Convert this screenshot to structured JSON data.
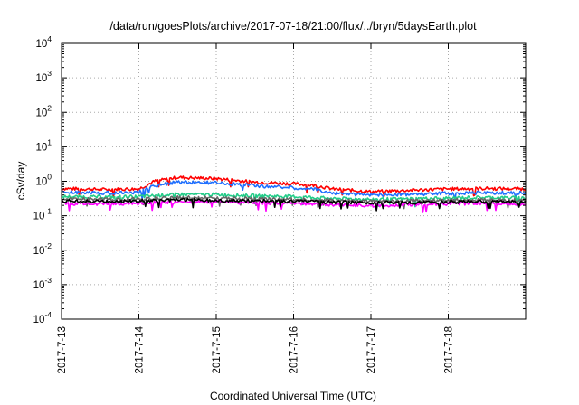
{
  "chart_data": {
    "type": "line",
    "title": "/data/run/goesPlots/archive/2017-07-18/21:00/flux/../bryn/5daysEarth.plot",
    "xlabel": "Coordinated Universal Time (UTC)",
    "ylabel": "cSv/day",
    "yscale": "log",
    "ylim_exp": [
      -4,
      4
    ],
    "y_ticks": [
      {
        "base": "10",
        "exp": "-4"
      },
      {
        "base": "10",
        "exp": "-3"
      },
      {
        "base": "10",
        "exp": "-2"
      },
      {
        "base": "10",
        "exp": "-1"
      },
      {
        "base": "10",
        "exp": "0"
      },
      {
        "base": "10",
        "exp": "1"
      },
      {
        "base": "10",
        "exp": "2"
      },
      {
        "base": "10",
        "exp": "3"
      },
      {
        "base": "10",
        "exp": "4"
      }
    ],
    "xlim_days": [
      0,
      6
    ],
    "x_ticks": [
      "2017-7-13",
      "2017-7-14",
      "2017-7-15",
      "2017-7-16",
      "2017-7-17",
      "2017-7-18"
    ],
    "grid": true,
    "series": [
      {
        "color": "#ff0000",
        "x": [
          0,
          0.5,
          1.0,
          1.2,
          1.5,
          2.0,
          2.5,
          3.0,
          3.3,
          3.5,
          4.0,
          4.5,
          5.0,
          5.5,
          6.0
        ],
        "values": [
          0.62,
          0.58,
          0.6,
          1.0,
          1.3,
          1.2,
          0.95,
          0.85,
          0.75,
          0.6,
          0.5,
          0.55,
          0.6,
          0.62,
          0.6
        ]
      },
      {
        "color": "#1e6fff",
        "x": [
          0,
          0.5,
          1.0,
          1.2,
          1.5,
          2.0,
          2.5,
          3.0,
          3.3,
          3.5,
          4.0,
          4.5,
          5.0,
          5.5,
          6.0
        ],
        "values": [
          0.48,
          0.46,
          0.48,
          0.75,
          0.95,
          0.9,
          0.75,
          0.65,
          0.58,
          0.45,
          0.4,
          0.42,
          0.45,
          0.47,
          0.46
        ]
      },
      {
        "color": "#22cc88",
        "x": [
          0,
          0.5,
          1.0,
          1.5,
          2.0,
          2.5,
          3.0,
          3.5,
          4.0,
          4.5,
          5.0,
          5.5,
          6.0
        ],
        "values": [
          0.36,
          0.35,
          0.36,
          0.42,
          0.41,
          0.38,
          0.36,
          0.32,
          0.3,
          0.31,
          0.33,
          0.34,
          0.33
        ]
      },
      {
        "color": "#666666",
        "x": [
          0,
          0.5,
          1.0,
          1.5,
          2.0,
          2.5,
          3.0,
          3.5,
          4.0,
          4.5,
          5.0,
          5.5,
          6.0
        ],
        "values": [
          0.31,
          0.3,
          0.31,
          0.34,
          0.33,
          0.31,
          0.3,
          0.28,
          0.26,
          0.27,
          0.28,
          0.29,
          0.28
        ]
      },
      {
        "color": "#ff00ff",
        "x": [
          0,
          0.5,
          1.0,
          1.5,
          2.0,
          2.5,
          3.0,
          3.5,
          4.0,
          4.5,
          5.0,
          5.5,
          6.0
        ],
        "values": [
          0.23,
          0.22,
          0.23,
          0.26,
          0.25,
          0.24,
          0.23,
          0.21,
          0.2,
          0.21,
          0.22,
          0.23,
          0.22
        ]
      },
      {
        "color": "#000000",
        "x": [
          0,
          0.5,
          1.0,
          1.5,
          2.0,
          2.5,
          3.0,
          3.5,
          4.0,
          4.5,
          5.0,
          5.5,
          6.0
        ],
        "values": [
          0.27,
          0.26,
          0.27,
          0.29,
          0.28,
          0.27,
          0.26,
          0.25,
          0.24,
          0.24,
          0.25,
          0.26,
          0.25
        ]
      }
    ]
  }
}
